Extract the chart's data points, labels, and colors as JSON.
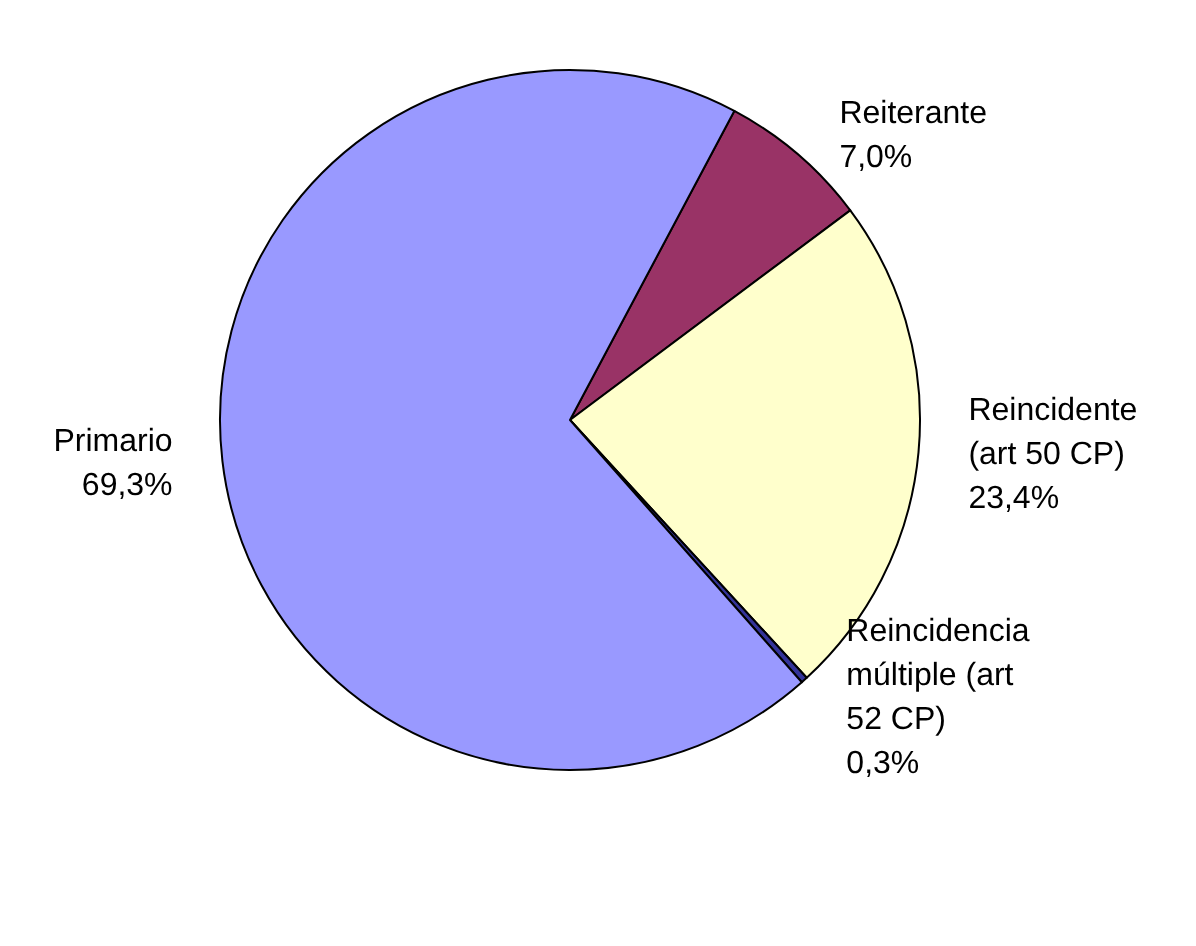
{
  "chart_data": {
    "type": "pie",
    "categories": [
      "Reiterante",
      "Reincidente (art 50 CP)",
      "Reincidencia múltiple (art 52 CP)",
      "Primario"
    ],
    "values": [
      7.0,
      23.4,
      0.3,
      69.3
    ],
    "value_labels": [
      "7,0%",
      "23,4%",
      "0,3%",
      "69,3%"
    ],
    "colors": [
      "#993366",
      "#ffffcc",
      "#333399",
      "#9999ff"
    ],
    "legend": false
  }
}
